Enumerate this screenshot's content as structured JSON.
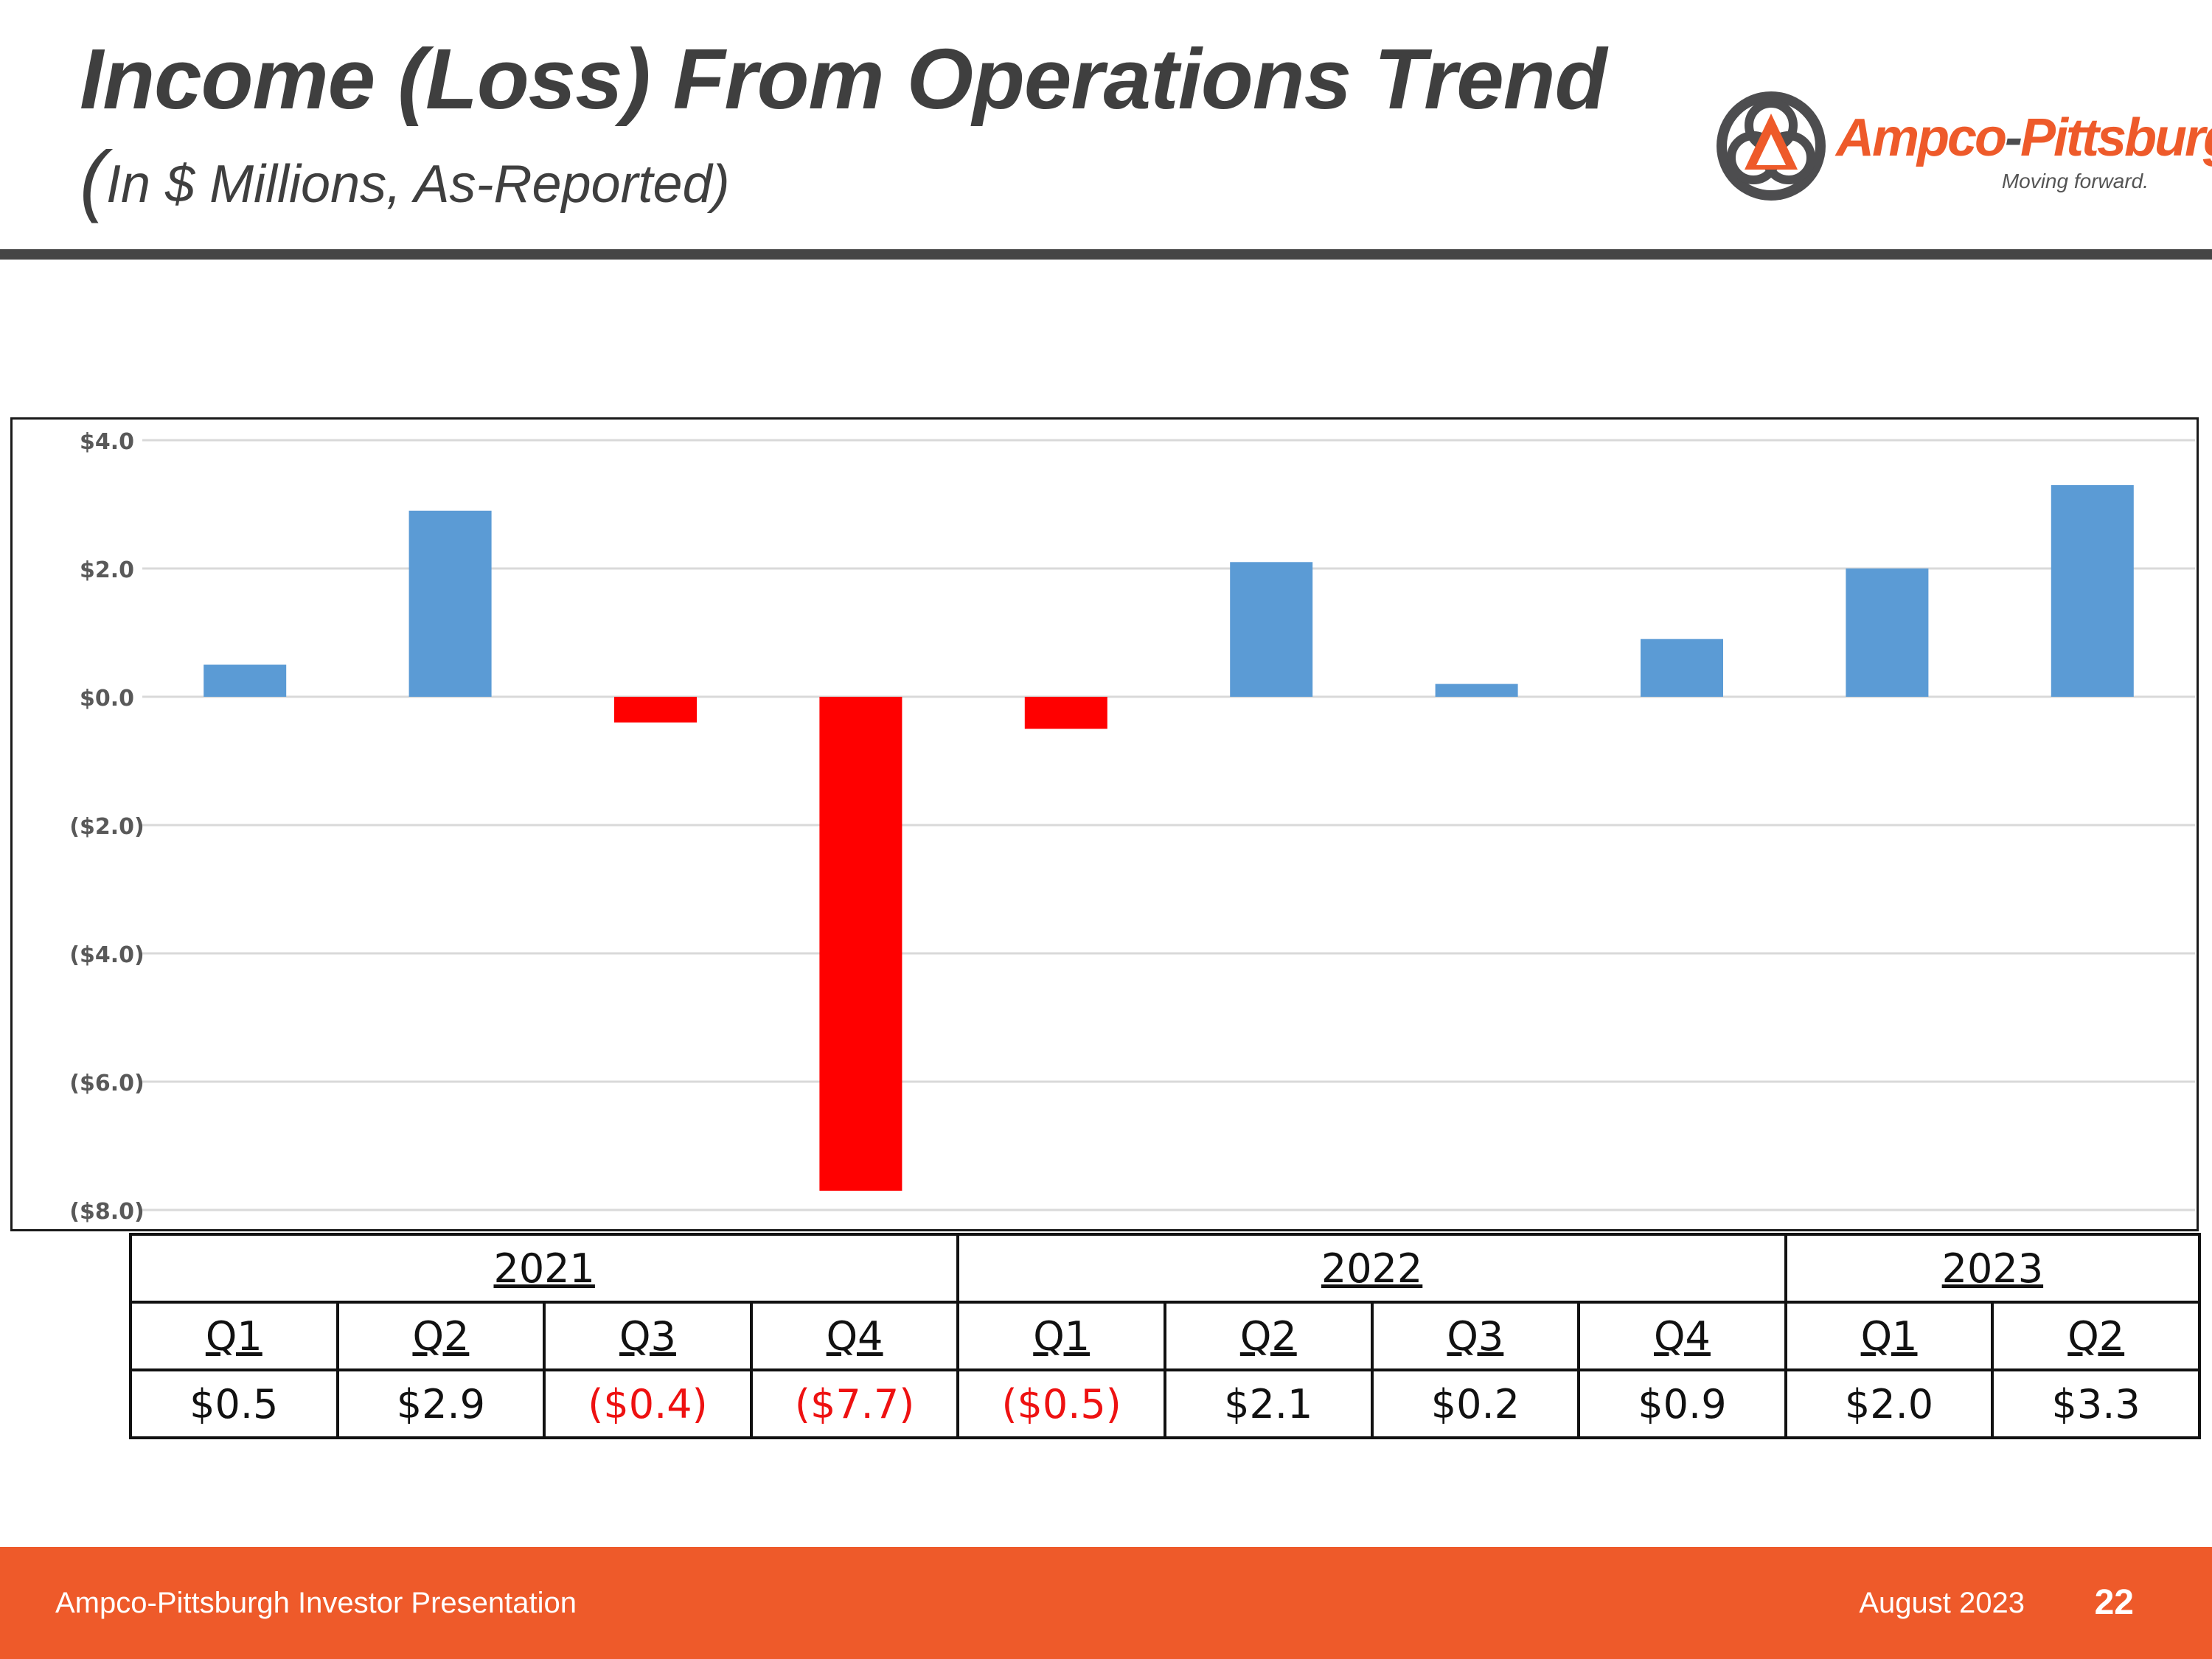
{
  "header": {
    "title": "Income (Loss) From Operations Trend",
    "subtitle_paren": "(",
    "subtitle_text": "In $ Millions, As-Reported)"
  },
  "logo": {
    "brand_part1": "Ampco",
    "brand_part2": "-",
    "brand_part3": "Pittsburgh",
    "tagline": "Moving forward."
  },
  "colors": {
    "positive_bar": "#5b9bd5",
    "negative_bar": "#ff0000",
    "accent": "#ee5a2a",
    "title_text": "#3f3f3f",
    "negative_text": "#ee1111",
    "gridline": "#d9d9d9"
  },
  "chart_data": {
    "type": "bar",
    "title": "Income (Loss) From Operations Trend",
    "ylabel": "In $ Millions, As-Reported",
    "xlabel": "",
    "ylim": [
      -8,
      4
    ],
    "yticks": [
      4,
      2,
      0,
      -2,
      -4,
      -6,
      -8
    ],
    "ytick_labels": [
      "$4.0",
      "$2.0",
      "$0.0",
      "($2.0)",
      "($4.0)",
      "($6.0)",
      "($8.0)"
    ],
    "grid": true,
    "legend": "none",
    "categories": [
      "2021 Q1",
      "2021 Q2",
      "2021 Q3",
      "2021 Q4",
      "2022 Q1",
      "2022 Q2",
      "2022 Q3",
      "2022 Q4",
      "2023 Q1",
      "2023 Q2"
    ],
    "values": [
      0.5,
      2.9,
      -0.4,
      -7.7,
      -0.5,
      2.1,
      0.2,
      0.9,
      2.0,
      3.3
    ]
  },
  "table": {
    "years": [
      {
        "label": "2021",
        "span": 4
      },
      {
        "label": "2022",
        "span": 4
      },
      {
        "label": "2023",
        "span": 2
      }
    ],
    "quarters": [
      "Q1",
      "Q2",
      "Q3",
      "Q4",
      "Q1",
      "Q2",
      "Q3",
      "Q4",
      "Q1",
      "Q2"
    ],
    "values": [
      {
        "text": "$0.5",
        "negative": false
      },
      {
        "text": "$2.9",
        "negative": false
      },
      {
        "text": "($0.4)",
        "negative": true
      },
      {
        "text": "($7.7)",
        "negative": true
      },
      {
        "text": "($0.5)",
        "negative": true
      },
      {
        "text": "$2.1",
        "negative": false
      },
      {
        "text": "$0.2",
        "negative": false
      },
      {
        "text": "$0.9",
        "negative": false
      },
      {
        "text": "$2.0",
        "negative": false
      },
      {
        "text": "$3.3",
        "negative": false
      }
    ]
  },
  "footer": {
    "left_text": "Ampco-Pittsburgh Investor Presentation",
    "date": "August 2023",
    "page_number": "22"
  }
}
